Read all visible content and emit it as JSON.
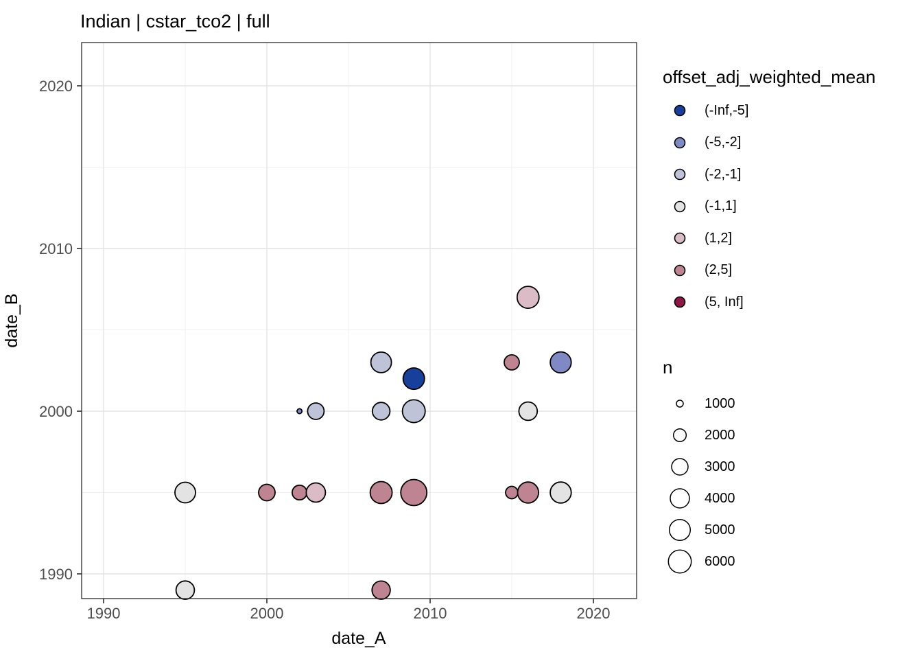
{
  "title": "Indian | cstar_tco2 | full",
  "chart_data": {
    "type": "scatter",
    "title": "Indian | cstar_tco2 | full",
    "xlabel": "date_A",
    "ylabel": "date_B",
    "x_ticks": [
      1990,
      2000,
      2010,
      2020
    ],
    "x_minor_ticks": [
      1995,
      2005,
      2015
    ],
    "y_ticks": [
      1990,
      2000,
      2010,
      2020
    ],
    "y_minor_ticks": [
      1995,
      2005,
      2015
    ],
    "x_range": [
      1988.6,
      2022.6
    ],
    "y_range": [
      1988.4,
      2022.8
    ],
    "grid": true,
    "legend_position": "right",
    "points": [
      {
        "date_A": 1995,
        "date_B": 1995,
        "bin": "(-1,1]",
        "n": 5000,
        "r": 15.0
      },
      {
        "date_A": 1995,
        "date_B": 1989,
        "bin": "(-1,1]",
        "n": 4200,
        "r": 13.4
      },
      {
        "date_A": 2000,
        "date_B": 1995,
        "bin": "(2,5]",
        "n": 3500,
        "r": 12.0
      },
      {
        "date_A": 2002,
        "date_B": 1995,
        "bin": "(2,5]",
        "n": 2900,
        "r": 10.7
      },
      {
        "date_A": 2002,
        "date_B": 2000,
        "bin": "(-5,-2]",
        "n": 700,
        "r": 3.6
      },
      {
        "date_A": 2003,
        "date_B": 1995,
        "bin": "(1,2]",
        "n": 4500,
        "r": 14.0
      },
      {
        "date_A": 2003,
        "date_B": 2000,
        "bin": "(-2,-1]",
        "n": 3500,
        "r": 12.0
      },
      {
        "date_A": 2007,
        "date_B": 2003,
        "bin": "(-2,-1]",
        "n": 5000,
        "r": 15.0
      },
      {
        "date_A": 2007,
        "date_B": 2000,
        "bin": "(-2,-1]",
        "n": 3900,
        "r": 12.8
      },
      {
        "date_A": 2007,
        "date_B": 1995,
        "bin": "(2,5]",
        "n": 5600,
        "r": 16.0
      },
      {
        "date_A": 2007,
        "date_B": 1989,
        "bin": "(2,5]",
        "n": 4100,
        "r": 13.3
      },
      {
        "date_A": 2009,
        "date_B": 2002,
        "bin": "(-Inf,-5]",
        "n": 5400,
        "r": 15.6
      },
      {
        "date_A": 2009,
        "date_B": 2000,
        "bin": "(-2,-1]",
        "n": 6000,
        "r": 16.6
      },
      {
        "date_A": 2009,
        "date_B": 1995,
        "bin": "(2,5]",
        "n": 7500,
        "r": 19.0
      },
      {
        "date_A": 2015,
        "date_B": 2003,
        "bin": "(2,5]",
        "n": 3100,
        "r": 11.0
      },
      {
        "date_A": 2015,
        "date_B": 1995,
        "bin": "(2,5]",
        "n": 2200,
        "r": 9.0
      },
      {
        "date_A": 2016,
        "date_B": 2007,
        "bin": "(1,2]",
        "n": 5600,
        "r": 16.0
      },
      {
        "date_A": 2016,
        "date_B": 2000,
        "bin": "(-1,1]",
        "n": 4200,
        "r": 13.4
      },
      {
        "date_A": 2016,
        "date_B": 1995,
        "bin": "(2,5]",
        "n": 5200,
        "r": 15.3
      },
      {
        "date_A": 2018,
        "date_B": 2003,
        "bin": "(-5,-2]",
        "n": 5200,
        "r": 15.3
      },
      {
        "date_A": 2018,
        "date_B": 1995,
        "bin": "(-1,1]",
        "n": 5200,
        "r": 15.3
      }
    ],
    "color_legend": {
      "title": "offset_adj_weighted_mean",
      "entries": [
        {
          "label": "(-Inf,-5]",
          "color": "#16409c"
        },
        {
          "label": "(-5,-2]",
          "color": "#7f89c4"
        },
        {
          "label": "(-2,-1]",
          "color": "#bfc3d8"
        },
        {
          "label": "(-1,1]",
          "color": "#e3e3e3"
        },
        {
          "label": "(1,2]",
          "color": "#dabbc6"
        },
        {
          "label": "(2,5]",
          "color": "#bf8492"
        },
        {
          "label": "(5, Inf]",
          "color": "#8f1747"
        }
      ]
    },
    "size_legend": {
      "title": "n",
      "entries": [
        {
          "label": "1000",
          "r": 5.0
        },
        {
          "label": "2000",
          "r": 9.3
        },
        {
          "label": "3000",
          "r": 12.0
        },
        {
          "label": "4000",
          "r": 14.0
        },
        {
          "label": "5000",
          "r": 15.3
        },
        {
          "label": "6000",
          "r": 16.7
        }
      ]
    }
  },
  "colors": {
    "point_stroke": "#000000",
    "grid_major": "#e3e3e3",
    "grid_minor": "#f0f0f0",
    "panel_border": "#2b2b2b",
    "tick_mark": "#2b2b2b",
    "tick_label": "#4d4d4d",
    "background": "#ffffff"
  }
}
